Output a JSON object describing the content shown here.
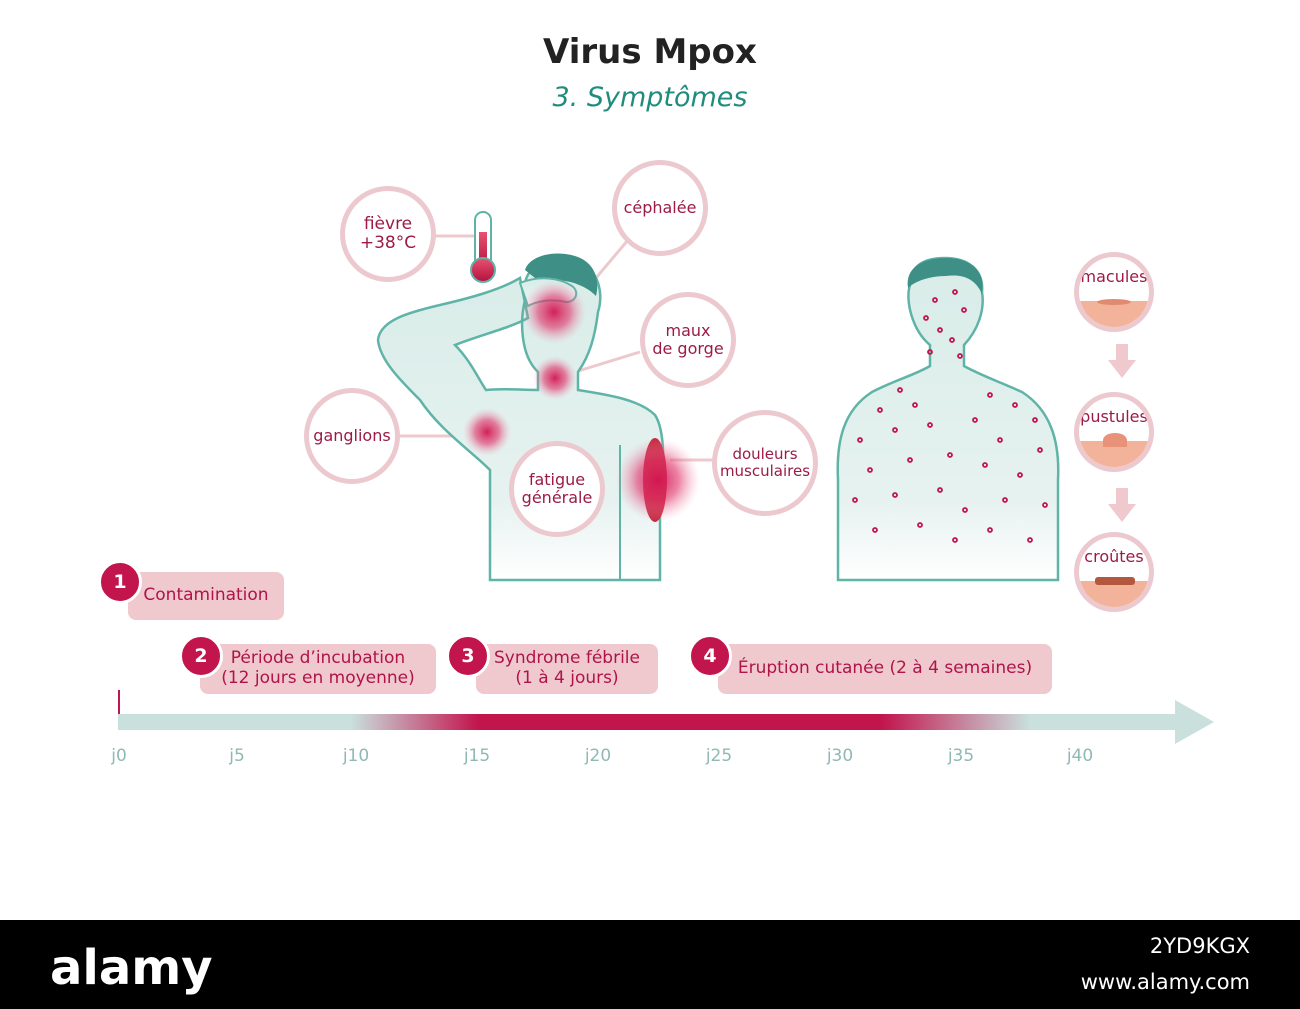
{
  "title": "Virus Mpox",
  "subtitle": "3. Symptômes",
  "symptoms": {
    "fievre": "fièvre\n+38°C",
    "cephalee": "céphalée",
    "maux_gorge": "maux\nde gorge",
    "ganglions": "ganglions",
    "fatigue": "fatigue\ngénérale",
    "douleurs": "douleurs\nmusculaires"
  },
  "rash_stages": [
    "macules",
    "pustules",
    "croûtes"
  ],
  "timeline": {
    "steps": [
      {
        "number": "1",
        "label": "Contamination"
      },
      {
        "number": "2",
        "label": "Période d’incubation\n(12 jours en moyenne)"
      },
      {
        "number": "3",
        "label": "Syndrome fébrile\n(1 à 4 jours)"
      },
      {
        "number": "4",
        "label": "Éruption cutanée (2 à 4 semaines)"
      }
    ],
    "ticks": [
      "j0",
      "j5",
      "j10",
      "j15",
      "j20",
      "j25",
      "j30",
      "j35",
      "j40"
    ]
  },
  "colors": {
    "accent": "#c2144d",
    "teal": "#1f8c7e",
    "pale_teal": "#c9e0dd",
    "pink": "#f0c9cf"
  },
  "watermark": {
    "logo": "alamy",
    "image_id": "2YD9KGX",
    "site": "www.alamy.com"
  }
}
